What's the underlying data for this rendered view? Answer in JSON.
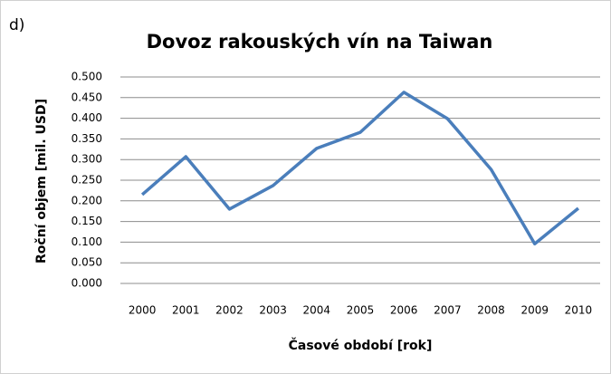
{
  "panel_label": "d)",
  "chart_data": {
    "type": "line",
    "title": "Dovoz rakouských vín na Taiwan",
    "x_label": "Časové období [rok]",
    "y_label": "Roční objem [mil. USD]",
    "categories": [
      "2000",
      "2001",
      "2002",
      "2003",
      "2004",
      "2005",
      "2006",
      "2007",
      "2008",
      "2009",
      "2010"
    ],
    "series": [
      {
        "name": "Dovoz",
        "color": "#4a7ebb",
        "values": [
          0.215,
          0.307,
          0.18,
          0.237,
          0.327,
          0.366,
          0.463,
          0.399,
          0.276,
          0.096,
          0.182
        ]
      }
    ],
    "ylim": [
      0,
      0.5
    ],
    "yticks": [
      {
        "value": 0,
        "label": "0.000"
      },
      {
        "value": 0.05,
        "label": "0.050"
      },
      {
        "value": 0.1,
        "label": "0.100"
      },
      {
        "value": 0.15,
        "label": "0.150"
      },
      {
        "value": 0.2,
        "label": "0.200"
      },
      {
        "value": 0.25,
        "label": "0.250"
      },
      {
        "value": 0.3,
        "label": "0.300"
      },
      {
        "value": 0.35,
        "label": "0.350"
      },
      {
        "value": 0.4,
        "label": "0.400"
      },
      {
        "value": 0.45,
        "label": "0.450"
      },
      {
        "value": 0.5,
        "label": "0.500"
      }
    ],
    "grid": true
  }
}
